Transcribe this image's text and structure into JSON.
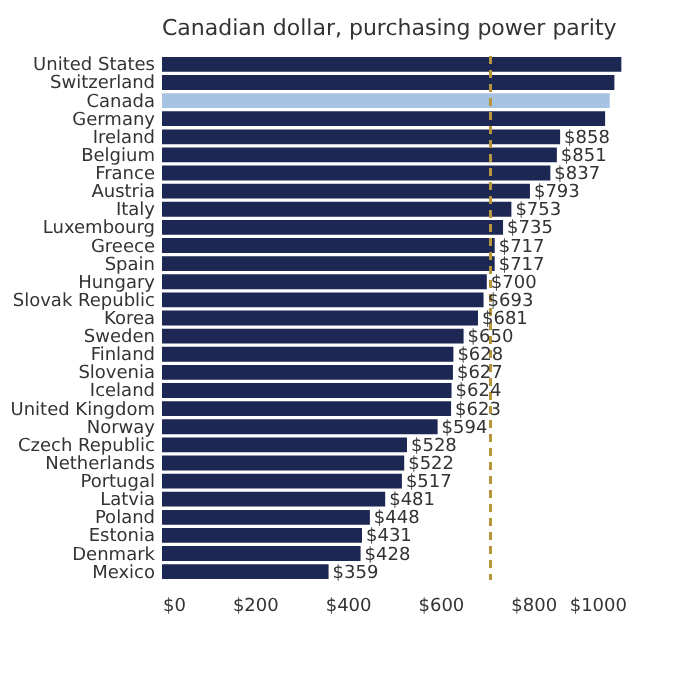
{
  "chart_data": {
    "type": "bar",
    "orientation": "horizontal",
    "title": "Canadian dollar, purchasing power parity",
    "categories": [
      "United States",
      "Switzerland",
      "Canada",
      "Germany",
      "Ireland",
      "Belgium",
      "France",
      "Austria",
      "Italy",
      "Luxembourg",
      "Greece",
      "Spain",
      "Hungary",
      "Slovak Republic",
      "Korea",
      "Sweden",
      "Finland",
      "Slovenia",
      "Iceland",
      "United Kingdom",
      "Norway",
      "Czech Republic",
      "Netherlands",
      "Portugal",
      "Latvia",
      "Poland",
      "Estonia",
      "Denmark",
      "Mexico"
    ],
    "values": [
      990,
      975,
      965,
      955,
      858,
      851,
      837,
      793,
      753,
      735,
      717,
      717,
      700,
      693,
      681,
      650,
      628,
      627,
      624,
      623,
      594,
      528,
      522,
      517,
      481,
      448,
      431,
      428,
      359
    ],
    "value_labels": [
      null,
      null,
      null,
      null,
      "$858",
      "$851",
      "$837",
      "$793",
      "$753",
      "$735",
      "$717",
      "$717",
      "$700",
      "$693",
      "$681",
      "$650",
      "$628",
      "$627",
      "$624",
      "$623",
      "$594",
      "$528",
      "$522",
      "$517",
      "$481",
      "$448",
      "$431",
      "$428",
      "$359"
    ],
    "colors": [
      "#1c2754",
      "#1c2754",
      "#a7c3e3",
      "#1c2754",
      "#1c2754",
      "#1c2754",
      "#1c2754",
      "#1c2754",
      "#1c2754",
      "#1c2754",
      "#1c2754",
      "#1c2754",
      "#1c2754",
      "#1c2754",
      "#1c2754",
      "#1c2754",
      "#1c2754",
      "#1c2754",
      "#1c2754",
      "#1c2754",
      "#1c2754",
      "#1c2754",
      "#1c2754",
      "#1c2754",
      "#1c2754",
      "#1c2754",
      "#1c2754",
      "#1c2754",
      "#1c2754"
    ],
    "xlim": [
      0,
      1000
    ],
    "xticks": [
      {
        "value": 0,
        "label": "$0"
      },
      {
        "value": 200,
        "label": "$200"
      },
      {
        "value": 400,
        "label": "$400"
      },
      {
        "value": 600,
        "label": "$600"
      },
      {
        "value": 800,
        "label": "$800"
      },
      {
        "value": 1000,
        "label": "$1000"
      }
    ],
    "ref_lines": [
      {
        "axis": "x",
        "value": 708,
        "color": "#b8963c",
        "line_style": "dashed"
      }
    ],
    "grid": false
  }
}
